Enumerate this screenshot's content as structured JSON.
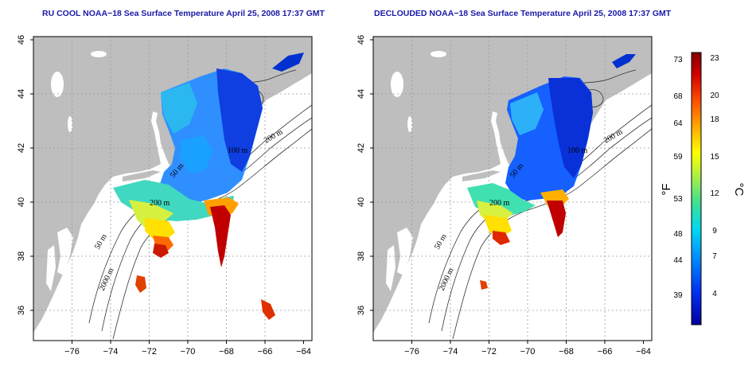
{
  "panels": [
    {
      "title": "RU COOL NOAA−18 Sea Surface Temperature April 25, 2008 17:37 GMT",
      "contour_labels": [
        "200 m",
        "100 m",
        "50 m",
        "2000 m",
        "50 m",
        "200 m"
      ]
    },
    {
      "title": "DECLOUDED NOAA−18 Sea Surface Temperature April 25, 2008 17:37 GMT",
      "contour_labels": [
        "200 m",
        "100 m",
        "50 m",
        "2000 m",
        "50 m",
        "200 m"
      ]
    }
  ],
  "axes": {
    "lon_ticks": [
      "−76",
      "−74",
      "−72",
      "−70",
      "−68",
      "−66",
      "−64"
    ],
    "lat_ticks": [
      "36",
      "38",
      "40",
      "42",
      "44",
      "46"
    ]
  },
  "colorbar": {
    "fahrenheit_ticks": [
      "73",
      "68",
      "64",
      "59",
      "53",
      "48",
      "44",
      "39"
    ],
    "celsius_ticks": [
      "23",
      "20",
      "18",
      "15",
      "12",
      "9",
      "7",
      "4"
    ],
    "left_unit": "°F",
    "right_unit": "°C"
  },
  "colors": {
    "land": "#bebebe",
    "ocean": "#ffffff",
    "title": "#1a1aa8",
    "colorbar_stops": [
      "#0000b0",
      "#0044ff",
      "#00a0ff",
      "#00e0e0",
      "#40e080",
      "#c0f040",
      "#ffff00",
      "#ffa000",
      "#ff4000",
      "#c00000",
      "#800000"
    ]
  }
}
